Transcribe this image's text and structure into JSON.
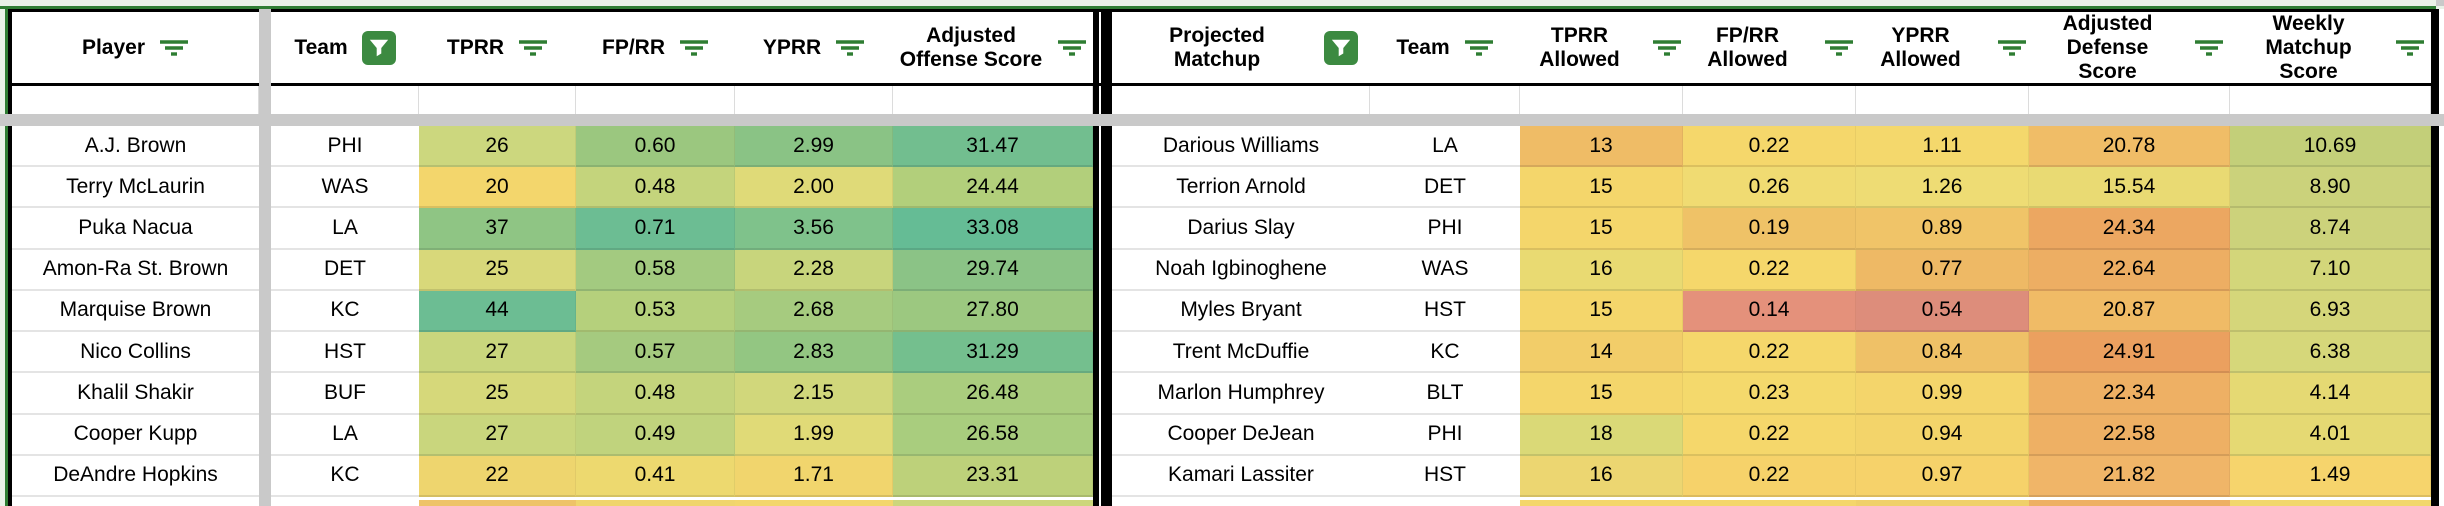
{
  "colors": {
    "sheet_margin_green": "#e9f1e7",
    "accent_green_rule": "#2f7d33",
    "filter_icon_green": "#2e7d32",
    "active_filter_bg": "#3c8a41",
    "frozen_divider_gray": "#c9c9c9",
    "table_border_black": "#000000"
  },
  "columns_left": [
    {
      "label": "Player",
      "icon": "filter-lines"
    },
    {
      "label": "Team",
      "icon": "filter-funnel-active"
    },
    {
      "label": "TPRR",
      "icon": "filter-lines"
    },
    {
      "label": "FP/RR",
      "icon": "filter-lines"
    },
    {
      "label": "YPRR",
      "icon": "filter-lines"
    },
    {
      "label": "Adjusted Offense Score",
      "icon": "filter-lines"
    }
  ],
  "columns_right": [
    {
      "label": "Projected Matchup",
      "icon": "filter-funnel-active"
    },
    {
      "label": "Team",
      "icon": "filter-lines"
    },
    {
      "label": "TPRR Allowed",
      "icon": "filter-lines"
    },
    {
      "label": "FP/RR Allowed",
      "icon": "filter-lines"
    },
    {
      "label": "YPRR Allowed",
      "icon": "filter-lines"
    },
    {
      "label": "Adjusted Defense Score",
      "icon": "filter-lines"
    },
    {
      "label": "Weekly Matchup Score",
      "icon": "filter-lines"
    }
  ],
  "rows": [
    {
      "player": "A.J. Brown",
      "team": "PHI",
      "left": [
        {
          "v": "26",
          "c": "#ccd77e"
        },
        {
          "v": "0.60",
          "c": "#9bc77f"
        },
        {
          "v": "2.99",
          "c": "#8ac385"
        },
        {
          "v": "31.47",
          "c": "#72be8f"
        }
      ],
      "matchup": "Darious Williams",
      "def_team": "LA",
      "right": [
        {
          "v": "13",
          "c": "#efbc66"
        },
        {
          "v": "0.22",
          "c": "#f5d76b"
        },
        {
          "v": "1.11",
          "c": "#f4d86c"
        },
        {
          "v": "20.78",
          "c": "#f0bd67"
        },
        {
          "v": "10.69",
          "c": "#c3cf79"
        }
      ]
    },
    {
      "player": "Terry McLaurin",
      "team": "WAS",
      "left": [
        {
          "v": "20",
          "c": "#f3d66c"
        },
        {
          "v": "0.48",
          "c": "#c4d47c"
        },
        {
          "v": "2.00",
          "c": "#dfda78"
        },
        {
          "v": "24.44",
          "c": "#b2cf7b"
        }
      ],
      "matchup": "Terrion Arnold",
      "def_team": "DET",
      "right": [
        {
          "v": "15",
          "c": "#f4d66b"
        },
        {
          "v": "0.26",
          "c": "#f0db72"
        },
        {
          "v": "1.26",
          "c": "#eedc74"
        },
        {
          "v": "15.54",
          "c": "#e9da73"
        },
        {
          "v": "8.90",
          "c": "#cbd27b"
        }
      ]
    },
    {
      "player": "Puka Nacua",
      "team": "LA",
      "left": [
        {
          "v": "37",
          "c": "#8fc584"
        },
        {
          "v": "0.71",
          "c": "#6cbd93"
        },
        {
          "v": "3.56",
          "c": "#7fc28b"
        },
        {
          "v": "33.08",
          "c": "#65bc95"
        }
      ],
      "matchup": "Darius Slay",
      "def_team": "PHI",
      "right": [
        {
          "v": "15",
          "c": "#f4d66b"
        },
        {
          "v": "0.19",
          "c": "#efc267"
        },
        {
          "v": "0.89",
          "c": "#f0c468"
        },
        {
          "v": "24.34",
          "c": "#eca761"
        },
        {
          "v": "8.74",
          "c": "#ccd27b"
        }
      ]
    },
    {
      "player": "Amon-Ra St. Brown",
      "team": "DET",
      "left": [
        {
          "v": "25",
          "c": "#d8d87a"
        },
        {
          "v": "0.58",
          "c": "#a3ca80"
        },
        {
          "v": "2.28",
          "c": "#c8d57c"
        },
        {
          "v": "29.74",
          "c": "#8bc386"
        }
      ],
      "matchup": "Noah Igbinoghene",
      "def_team": "WAS",
      "right": [
        {
          "v": "16",
          "c": "#e9da72"
        },
        {
          "v": "0.22",
          "c": "#f5d76b"
        },
        {
          "v": "0.77",
          "c": "#eeb965"
        },
        {
          "v": "22.64",
          "c": "#edae63"
        },
        {
          "v": "7.10",
          "c": "#d3d67a"
        }
      ]
    },
    {
      "player": "Marquise Brown",
      "team": "KC",
      "left": [
        {
          "v": "44",
          "c": "#6cbd93"
        },
        {
          "v": "0.53",
          "c": "#b5d07c"
        },
        {
          "v": "2.68",
          "c": "#a6cb7f"
        },
        {
          "v": "27.80",
          "c": "#9cc880"
        }
      ],
      "matchup": "Myles Bryant",
      "def_team": "HST",
      "right": [
        {
          "v": "15",
          "c": "#f4d66b"
        },
        {
          "v": "0.14",
          "c": "#e4917b"
        },
        {
          "v": "0.54",
          "c": "#dd8d7b"
        },
        {
          "v": "20.87",
          "c": "#f0bb66"
        },
        {
          "v": "6.93",
          "c": "#d5d67a"
        }
      ]
    },
    {
      "player": "Nico Collins",
      "team": "HST",
      "left": [
        {
          "v": "27",
          "c": "#c9d67d"
        },
        {
          "v": "0.57",
          "c": "#a5ca7f"
        },
        {
          "v": "2.83",
          "c": "#93c682"
        },
        {
          "v": "31.29",
          "c": "#74bf8e"
        }
      ],
      "matchup": "Trent McDuffie",
      "def_team": "KC",
      "right": [
        {
          "v": "14",
          "c": "#f2cd69"
        },
        {
          "v": "0.22",
          "c": "#f5d76b"
        },
        {
          "v": "0.84",
          "c": "#efc167"
        },
        {
          "v": "24.91",
          "c": "#eba05f"
        },
        {
          "v": "6.38",
          "c": "#d6d77a"
        }
      ]
    },
    {
      "player": "Khalil Shakir",
      "team": "BUF",
      "left": [
        {
          "v": "25",
          "c": "#d6d87a"
        },
        {
          "v": "0.48",
          "c": "#c4d47c"
        },
        {
          "v": "2.15",
          "c": "#d1d77b"
        },
        {
          "v": "26.48",
          "c": "#aacd7e"
        }
      ],
      "matchup": "Marlon Humphrey",
      "def_team": "BLT",
      "right": [
        {
          "v": "15",
          "c": "#f4d66b"
        },
        {
          "v": "0.23",
          "c": "#f4d96c"
        },
        {
          "v": "0.99",
          "c": "#f4d56b"
        },
        {
          "v": "22.34",
          "c": "#eeb064"
        },
        {
          "v": "4.14",
          "c": "#e5d973"
        }
      ]
    },
    {
      "player": "Cooper Kupp",
      "team": "LA",
      "left": [
        {
          "v": "27",
          "c": "#c9d67d"
        },
        {
          "v": "0.49",
          "c": "#c0d37d"
        },
        {
          "v": "1.99",
          "c": "#e0da77"
        },
        {
          "v": "26.58",
          "c": "#a9cd7e"
        }
      ],
      "matchup": "Cooper DeJean",
      "def_team": "PHI",
      "right": [
        {
          "v": "18",
          "c": "#dad977"
        },
        {
          "v": "0.22",
          "c": "#f5d76b"
        },
        {
          "v": "0.94",
          "c": "#f3d46a"
        },
        {
          "v": "22.58",
          "c": "#eeb064"
        },
        {
          "v": "4.01",
          "c": "#e5d973"
        }
      ]
    },
    {
      "player": "DeAndre Hopkins",
      "team": "KC",
      "left": [
        {
          "v": "22",
          "c": "#eed56e"
        },
        {
          "v": "0.41",
          "c": "#edd96f"
        },
        {
          "v": "1.71",
          "c": "#f1d56d"
        },
        {
          "v": "23.31",
          "c": "#bdd17a"
        }
      ],
      "matchup": "Kamari Lassiter",
      "def_team": "HST",
      "right": [
        {
          "v": "16",
          "c": "#ecd671"
        },
        {
          "v": "0.22",
          "c": "#f6d26a"
        },
        {
          "v": "0.97",
          "c": "#f6d26a"
        },
        {
          "v": "21.82",
          "c": "#f0b568"
        },
        {
          "v": "1.49",
          "c": "#f6d46c"
        }
      ]
    }
  ],
  "partial_row": {
    "left_colors": [
      "#ffffff",
      "#ffffff",
      "#eec368",
      "#f0d56d",
      "#f3d66c",
      "#cdd67c"
    ],
    "right_colors": [
      "#ffffff",
      "#ffffff",
      "#f4d66b",
      "#f4d66b",
      "#f0d06a",
      "#eeb064",
      "#f2d76d"
    ]
  }
}
